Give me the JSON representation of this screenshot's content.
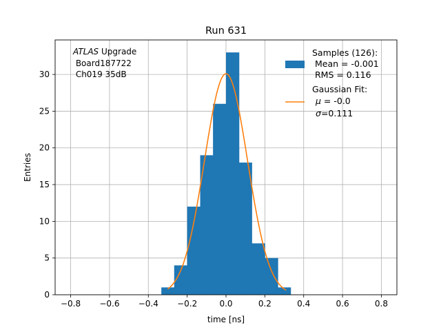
{
  "chart_data": {
    "type": "bar",
    "title": "Run 631",
    "xlabel": "time [ns]",
    "ylabel": "Entries",
    "xlim": [
      -0.88,
      0.88
    ],
    "ylim": [
      0,
      34.7
    ],
    "grid": true,
    "x_ticks": [
      -0.8,
      -0.6,
      -0.4,
      -0.2,
      0.0,
      0.2,
      0.4,
      0.6,
      0.8
    ],
    "y_ticks": [
      0,
      5,
      10,
      15,
      20,
      25,
      30
    ],
    "annotation": {
      "italic": "ATLAS",
      "text": " Upgrade",
      "line2": " Board187722",
      "line3": " Ch019 35dB"
    },
    "histogram": {
      "color": "#1f77b4",
      "bin_edges": [
        -0.333,
        -0.267,
        -0.2,
        -0.133,
        -0.067,
        0.0,
        0.067,
        0.133,
        0.2,
        0.267,
        0.333
      ],
      "counts": [
        1,
        4,
        12,
        19,
        26,
        33,
        18,
        7,
        5,
        1
      ]
    },
    "fit": {
      "color": "#ff7f0e",
      "mu": -0.0,
      "sigma": 0.111,
      "amplitude": 30.1,
      "x_range": [
        -0.3,
        0.31
      ]
    },
    "legend": {
      "placement": "top-right",
      "samples": {
        "title": "Samples (126):",
        "line1": " Mean = -0.001",
        "line2": " RMS = 0.116"
      },
      "gauss": {
        "title": "Gaussian Fit:",
        "line1_sym": "μ",
        "line1_val": " = -0.0",
        "line2_sym": "σ",
        "line2_val": "=0.111"
      }
    }
  }
}
